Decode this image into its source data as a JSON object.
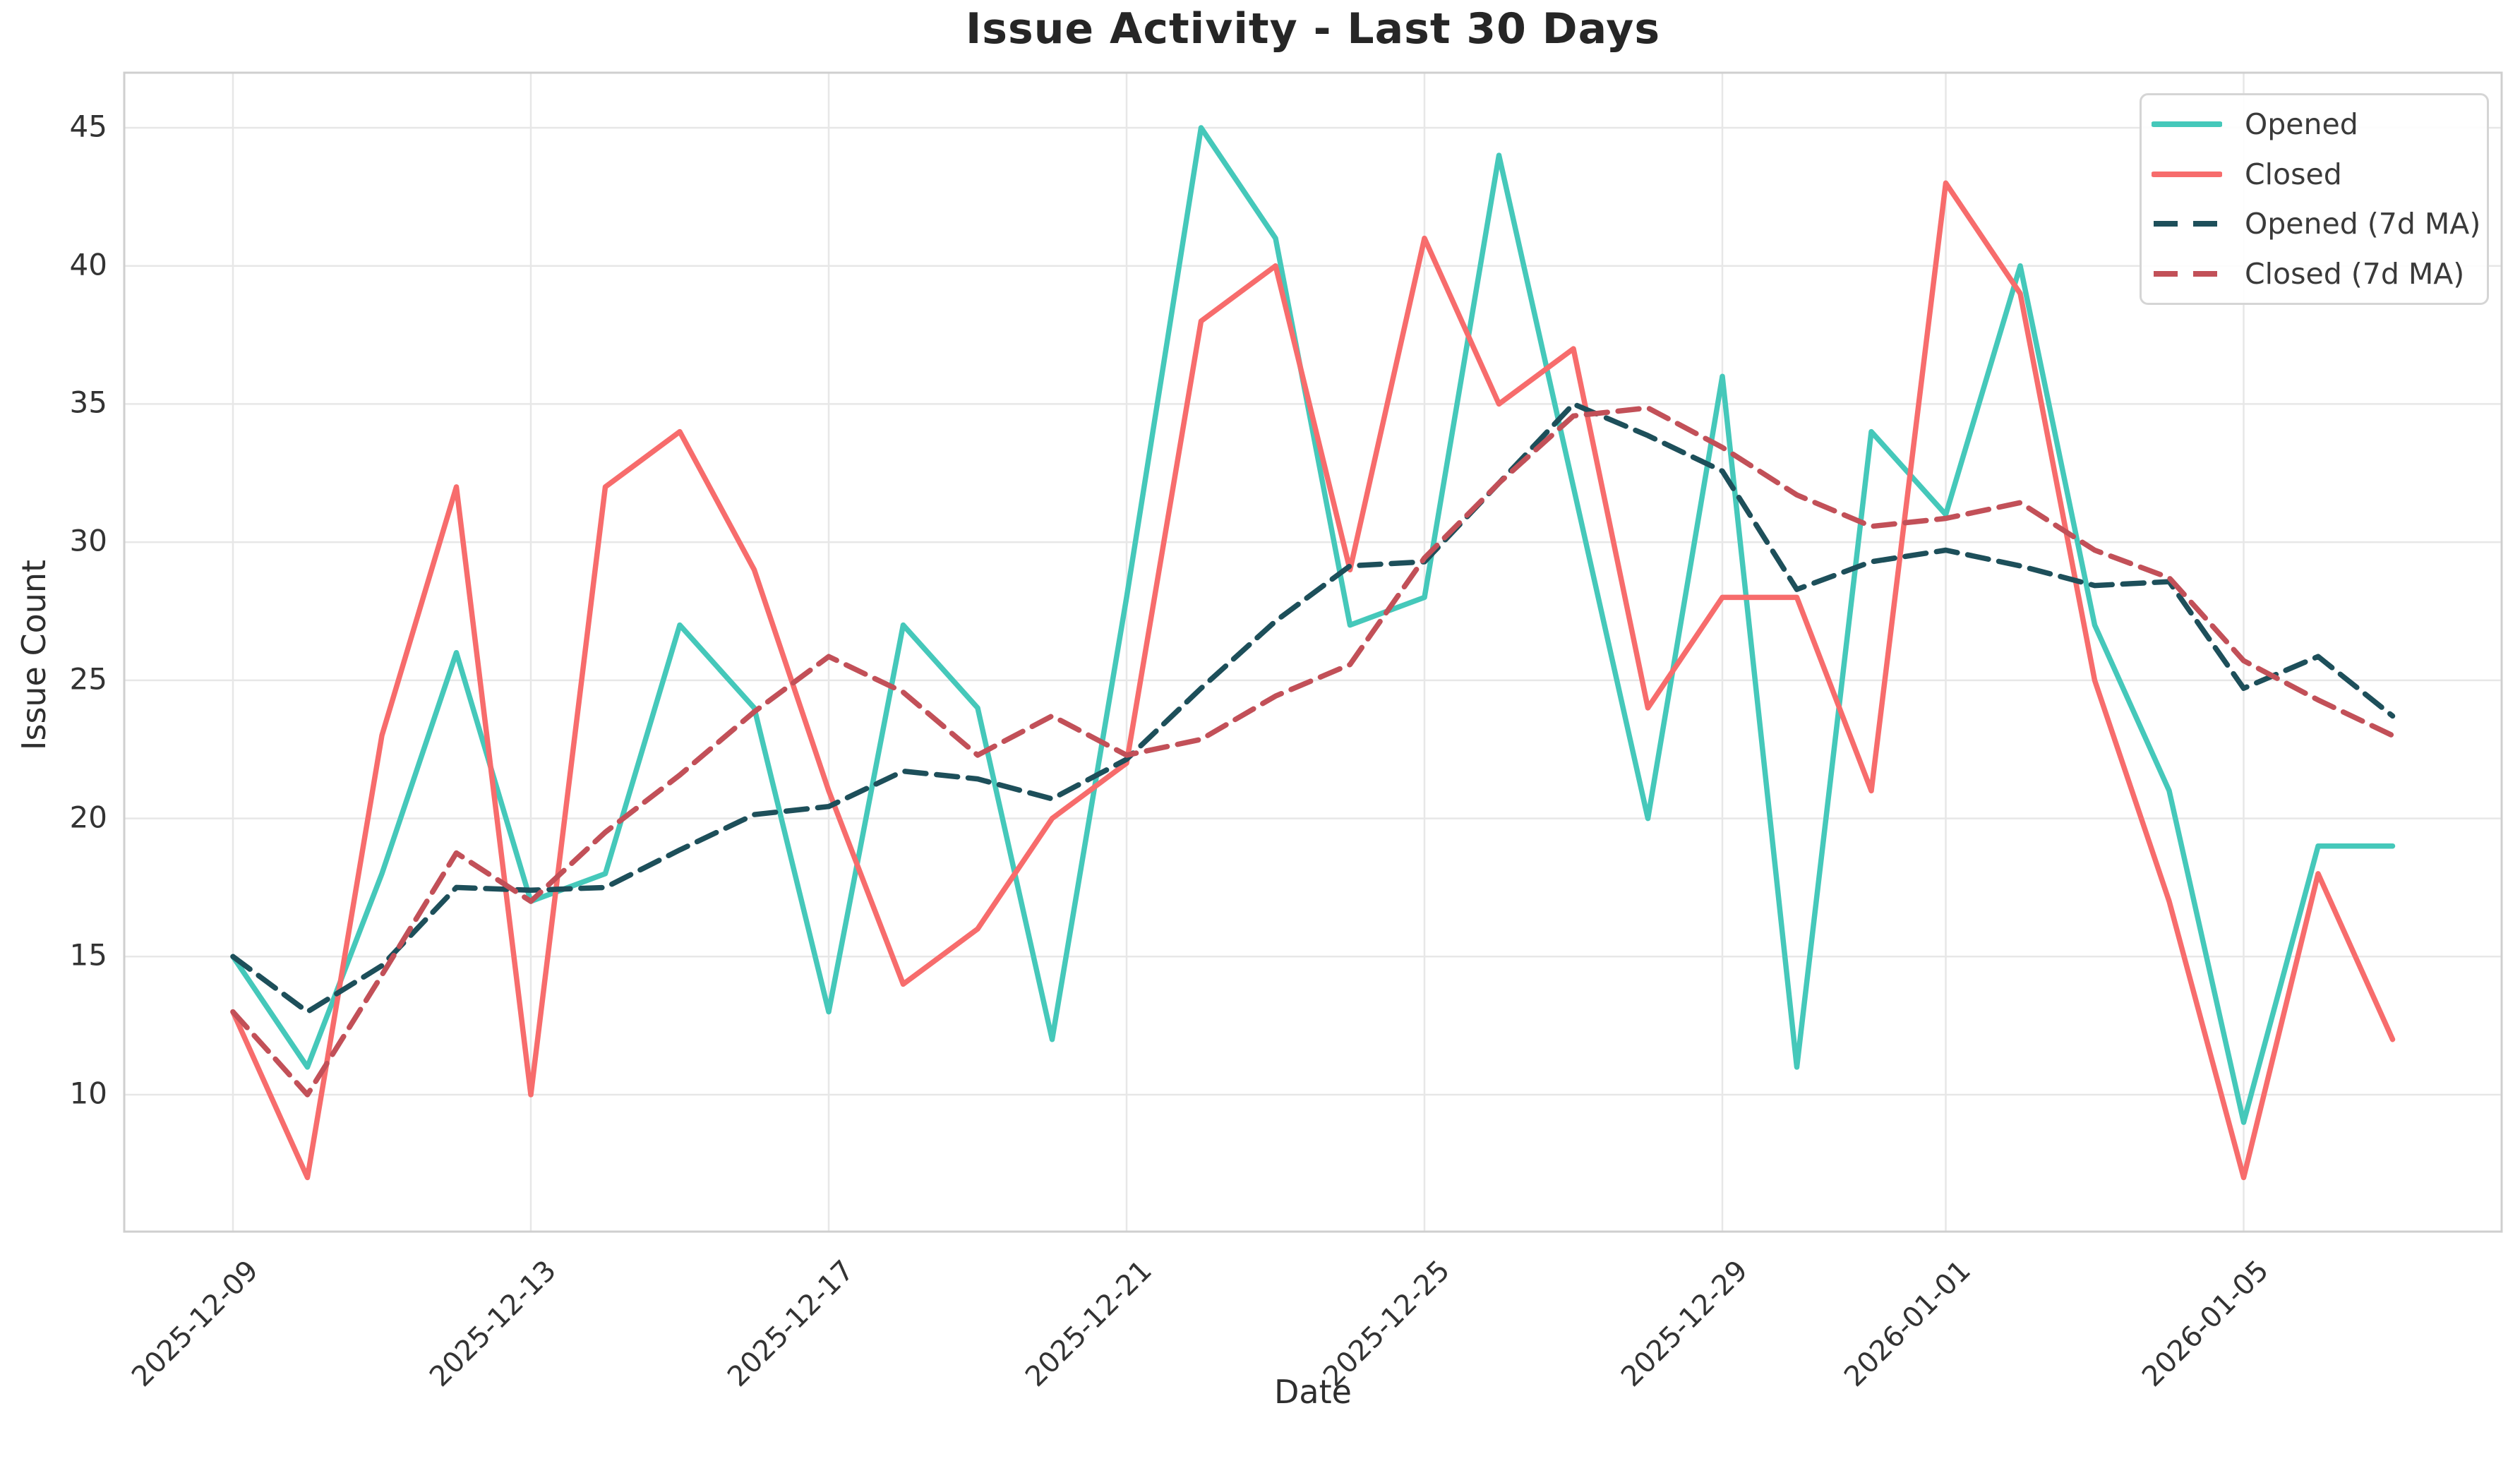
{
  "chart_data": {
    "type": "line",
    "title": "Issue Activity - Last 30 Days",
    "xlabel": "Date",
    "ylabel": "Issue Count",
    "grid": true,
    "legend_position": "upper right",
    "ylim": [
      5,
      47
    ],
    "y_ticks": [
      45,
      40,
      35,
      30,
      25,
      20,
      15,
      10
    ],
    "x_tick_labels": [
      "2025-12-09",
      "2025-12-13",
      "2025-12-17",
      "2025-12-21",
      "2025-12-25",
      "2025-12-29",
      "2026-01-01",
      "2026-01-05"
    ],
    "x_dates": [
      "2025-12-09",
      "2025-12-10",
      "2025-12-11",
      "2025-12-12",
      "2025-12-13",
      "2025-12-14",
      "2025-12-15",
      "2025-12-16",
      "2025-12-17",
      "2025-12-18",
      "2025-12-19",
      "2025-12-20",
      "2025-12-21",
      "2025-12-22",
      "2025-12-23",
      "2025-12-24",
      "2025-12-25",
      "2025-12-26",
      "2025-12-27",
      "2025-12-28",
      "2025-12-29",
      "2025-12-30",
      "2025-12-31",
      "2026-01-01",
      "2026-01-02",
      "2026-01-03",
      "2026-01-04",
      "2026-01-05",
      "2026-01-06",
      "2026-01-07"
    ],
    "series": [
      {
        "id": "opened",
        "name": "Opened",
        "color": "#45C8BA",
        "style": "solid",
        "values": [
          15,
          11,
          18,
          26,
          17,
          18,
          27,
          24,
          13,
          27,
          24,
          12,
          28,
          45,
          41,
          27,
          28,
          44,
          32,
          20,
          36,
          11,
          34,
          31,
          40,
          27,
          21,
          9,
          19,
          19
        ]
      },
      {
        "id": "closed",
        "name": "Closed",
        "color": "#F76C6C",
        "style": "solid",
        "values": [
          13,
          7,
          23,
          32,
          10,
          32,
          34,
          29,
          21,
          14,
          16,
          20,
          22,
          38,
          40,
          29,
          41,
          35,
          37,
          24,
          28,
          28,
          21,
          43,
          39,
          25,
          17,
          7,
          18,
          12
        ]
      },
      {
        "id": "opened-7d-ma",
        "name": "Opened (7d MA)",
        "color": "#1D4F5A",
        "style": "dashed",
        "values": [
          15,
          13,
          14.67,
          17.5,
          17.4,
          17.5,
          18.86,
          20.14,
          20.43,
          21.71,
          21.43,
          20.71,
          22.14,
          24.71,
          27.14,
          29.14,
          29.29,
          32.14,
          35,
          33.86,
          32.57,
          28.29,
          29.29,
          29.71,
          29.14,
          28.43,
          28.57,
          24.71,
          25.86,
          23.71
        ]
      },
      {
        "id": "closed-7d-ma",
        "name": "Closed (7d MA)",
        "color": "#C25058",
        "style": "dashed",
        "values": [
          13,
          10,
          14.33,
          18.75,
          17,
          19.5,
          21.57,
          23.86,
          25.86,
          24.57,
          22.29,
          23.71,
          22.29,
          22.86,
          24.43,
          25.57,
          29.43,
          32.14,
          34.57,
          34.86,
          33.43,
          31.71,
          30.57,
          30.86,
          31.43,
          29.71,
          28.71,
          25.71,
          24.29,
          23
        ]
      }
    ],
    "colors": {
      "grid": "#E7E7E7",
      "spine": "#CFCFCF",
      "title_text": "#262626",
      "tick_text": "#333333"
    }
  }
}
